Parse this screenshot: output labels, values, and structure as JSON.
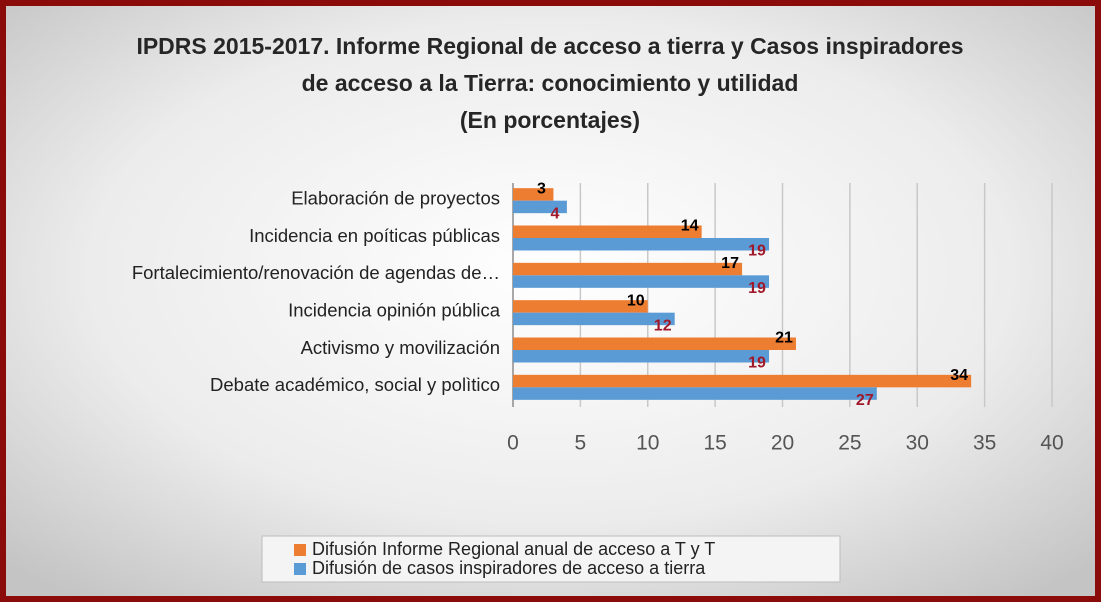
{
  "chart_data": {
    "type": "bar",
    "orientation": "horizontal",
    "title": "IPDRS 2015-2017. Informe Regional de acceso a tierra y Casos inspiradores de acceso a la Tierra: conocimiento y utilidad (En porcentajes)",
    "categories": [
      "Elaboración de proyectos",
      "Incidencia en poíticas públicas",
      "Fortalecimiento/renovación de agendas de…",
      "Incidencia opinión pública",
      "Activismo y movilización",
      "Debate académico, social y polìtico"
    ],
    "series": [
      {
        "name": "Difusión Informe Regional anual de acceso a T y T",
        "color": "#ed7d31",
        "label_color": "#000000",
        "values": [
          3,
          14,
          17,
          10,
          21,
          34
        ]
      },
      {
        "name": "Difusión de casos inspiradores de acceso a tierra",
        "color": "#5b9bd5",
        "label_color": "#a0192b",
        "values": [
          4,
          19,
          19,
          12,
          19,
          27
        ]
      }
    ],
    "xlim": [
      0,
      40
    ],
    "xticks": [
      0,
      5,
      10,
      15,
      20,
      25,
      30,
      35,
      40
    ],
    "grid": true,
    "legend": "bottom"
  }
}
